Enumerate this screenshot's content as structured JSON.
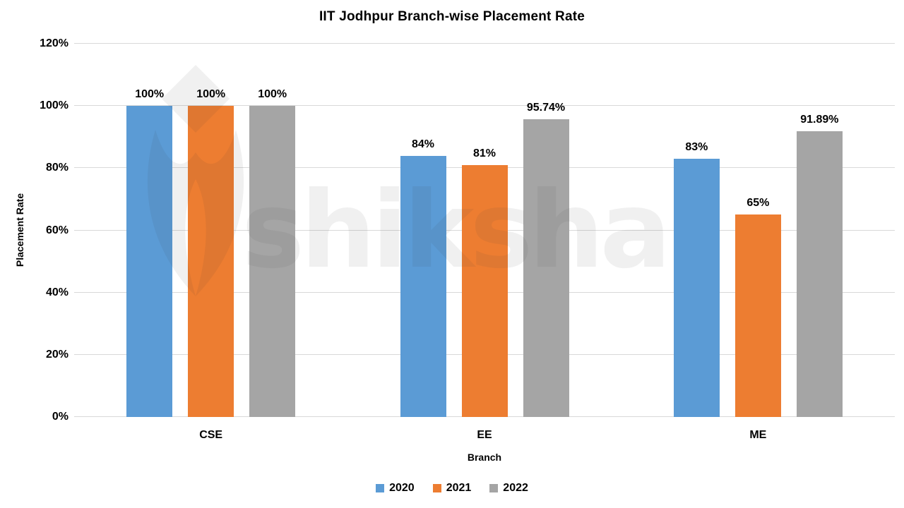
{
  "watermark": {
    "text": "shiksha"
  },
  "chart_data": {
    "type": "bar",
    "title": "IIT Jodhpur Branch-wise Placement Rate",
    "categories": [
      "CSE",
      "EE",
      "ME"
    ],
    "series": [
      {
        "name": "2020",
        "color": "#5B9BD5",
        "values": [
          100,
          84,
          83
        ],
        "labels": [
          "100%",
          "84%",
          "83%"
        ]
      },
      {
        "name": "2021",
        "color": "#ED7D31",
        "values": [
          100,
          81,
          65
        ],
        "labels": [
          "100%",
          "81%",
          "65%"
        ]
      },
      {
        "name": "2022",
        "color": "#A5A5A5",
        "values": [
          100,
          95.74,
          91.89
        ],
        "labels": [
          "100%",
          "95.74%",
          "91.89%"
        ]
      }
    ],
    "xlabel": "Branch",
    "ylabel": "Placement Rate",
    "ylim": [
      0,
      120
    ],
    "yticks": [
      {
        "v": 0,
        "label": "0%"
      },
      {
        "v": 20,
        "label": "20%"
      },
      {
        "v": 40,
        "label": "40%"
      },
      {
        "v": 60,
        "label": "60%"
      },
      {
        "v": 80,
        "label": "80%"
      },
      {
        "v": 100,
        "label": "100%"
      },
      {
        "v": 120,
        "label": "120%"
      }
    ],
    "grid": true,
    "gridline_color": "#d9d9d9",
    "legend_position": "bottom"
  }
}
